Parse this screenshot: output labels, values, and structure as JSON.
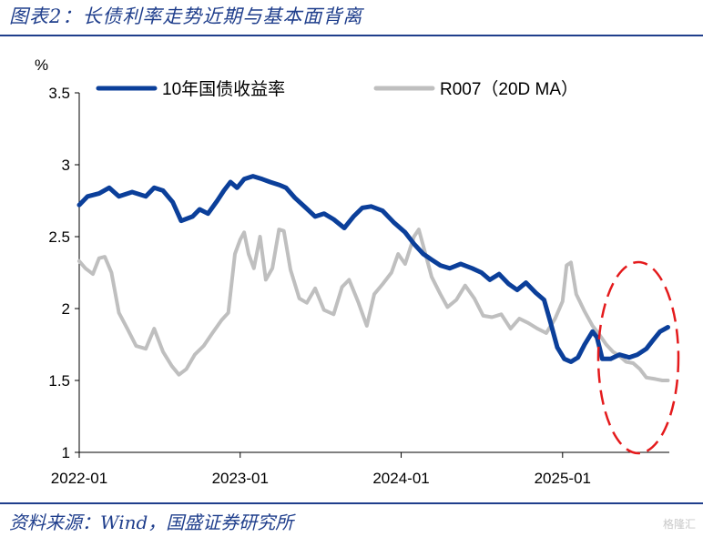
{
  "header": {
    "title": "图表2：长债利率走势近期与基本面背离"
  },
  "footer": {
    "source": "资料来源：Wind，国盛证券研究所",
    "watermark": "格隆汇"
  },
  "colors": {
    "blue_series": "#0b3f9a",
    "gray_series": "#bfbfbf",
    "annotation": "#e41a1c",
    "rule": "#1f3e8c"
  },
  "chart_data": {
    "type": "line",
    "title": "",
    "ylabel": "%",
    "xlabel": "",
    "ylim": [
      1,
      3.5
    ],
    "yticks": [
      "1",
      "1.5",
      "2",
      "2.5",
      "3",
      "3.5"
    ],
    "xticks": [
      "2022-01",
      "2023-01",
      "2024-01",
      "2025-01"
    ],
    "xlim": [
      "2022-01-01",
      "2025-08-31"
    ],
    "legend_position": "top",
    "annotation": "red dashed ellipse around recent divergence (2025-03 to 2025-08)",
    "series": [
      {
        "name": "10年国债收益率",
        "color": "#0b3f9a",
        "points": [
          [
            "2022-01-01",
            2.72
          ],
          [
            "2022-01-20",
            2.78
          ],
          [
            "2022-02-15",
            2.8
          ],
          [
            "2022-03-10",
            2.84
          ],
          [
            "2022-04-01",
            2.78
          ],
          [
            "2022-05-01",
            2.81
          ],
          [
            "2022-06-01",
            2.78
          ],
          [
            "2022-06-20",
            2.84
          ],
          [
            "2022-07-10",
            2.82
          ],
          [
            "2022-08-01",
            2.74
          ],
          [
            "2022-08-20",
            2.61
          ],
          [
            "2022-09-15",
            2.64
          ],
          [
            "2022-10-01",
            2.69
          ],
          [
            "2022-10-20",
            2.66
          ],
          [
            "2022-11-10",
            2.75
          ],
          [
            "2022-11-25",
            2.82
          ],
          [
            "2022-12-10",
            2.88
          ],
          [
            "2022-12-25",
            2.84
          ],
          [
            "2023-01-10",
            2.9
          ],
          [
            "2023-01-30",
            2.92
          ],
          [
            "2023-02-20",
            2.9
          ],
          [
            "2023-03-10",
            2.88
          ],
          [
            "2023-03-30",
            2.86
          ],
          [
            "2023-04-15",
            2.84
          ],
          [
            "2023-05-05",
            2.77
          ],
          [
            "2023-05-30",
            2.7
          ],
          [
            "2023-06-20",
            2.64
          ],
          [
            "2023-07-10",
            2.66
          ],
          [
            "2023-08-01",
            2.62
          ],
          [
            "2023-08-25",
            2.56
          ],
          [
            "2023-09-15",
            2.64
          ],
          [
            "2023-10-05",
            2.7
          ],
          [
            "2023-10-25",
            2.71
          ],
          [
            "2023-11-20",
            2.68
          ],
          [
            "2023-12-15",
            2.6
          ],
          [
            "2024-01-10",
            2.53
          ],
          [
            "2024-01-30",
            2.45
          ],
          [
            "2024-02-20",
            2.38
          ],
          [
            "2024-03-10",
            2.34
          ],
          [
            "2024-03-30",
            2.3
          ],
          [
            "2024-04-20",
            2.28
          ],
          [
            "2024-05-15",
            2.31
          ],
          [
            "2024-06-10",
            2.28
          ],
          [
            "2024-07-01",
            2.25
          ],
          [
            "2024-07-20",
            2.2
          ],
          [
            "2024-08-10",
            2.24
          ],
          [
            "2024-09-01",
            2.17
          ],
          [
            "2024-09-20",
            2.13
          ],
          [
            "2024-10-10",
            2.18
          ],
          [
            "2024-11-01",
            2.11
          ],
          [
            "2024-11-20",
            2.06
          ],
          [
            "2024-12-05",
            1.9
          ],
          [
            "2024-12-20",
            1.73
          ],
          [
            "2025-01-05",
            1.65
          ],
          [
            "2025-01-20",
            1.63
          ],
          [
            "2025-02-05",
            1.66
          ],
          [
            "2025-02-20",
            1.75
          ],
          [
            "2025-03-10",
            1.84
          ],
          [
            "2025-03-20",
            1.8
          ],
          [
            "2025-04-01",
            1.65
          ],
          [
            "2025-04-20",
            1.65
          ],
          [
            "2025-05-10",
            1.68
          ],
          [
            "2025-06-01",
            1.66
          ],
          [
            "2025-06-20",
            1.68
          ],
          [
            "2025-07-10",
            1.72
          ],
          [
            "2025-07-25",
            1.78
          ],
          [
            "2025-08-10",
            1.84
          ],
          [
            "2025-08-28",
            1.87
          ]
        ]
      },
      {
        "name": "R007（20D MA）",
        "color": "#bfbfbf",
        "points": [
          [
            "2022-01-01",
            2.33
          ],
          [
            "2022-01-15",
            2.28
          ],
          [
            "2022-02-01",
            2.24
          ],
          [
            "2022-02-15",
            2.35
          ],
          [
            "2022-02-28",
            2.36
          ],
          [
            "2022-03-15",
            2.25
          ],
          [
            "2022-04-01",
            1.97
          ],
          [
            "2022-04-20",
            1.86
          ],
          [
            "2022-05-10",
            1.74
          ],
          [
            "2022-06-01",
            1.72
          ],
          [
            "2022-06-20",
            1.86
          ],
          [
            "2022-07-10",
            1.7
          ],
          [
            "2022-07-30",
            1.6
          ],
          [
            "2022-08-15",
            1.54
          ],
          [
            "2022-09-01",
            1.58
          ],
          [
            "2022-09-20",
            1.68
          ],
          [
            "2022-10-10",
            1.74
          ],
          [
            "2022-10-30",
            1.83
          ],
          [
            "2022-11-20",
            1.92
          ],
          [
            "2022-12-05",
            1.97
          ],
          [
            "2022-12-20",
            2.38
          ],
          [
            "2023-01-01",
            2.48
          ],
          [
            "2023-01-10",
            2.53
          ],
          [
            "2023-01-20",
            2.38
          ],
          [
            "2023-02-01",
            2.28
          ],
          [
            "2023-02-15",
            2.5
          ],
          [
            "2023-02-28",
            2.2
          ],
          [
            "2023-03-15",
            2.28
          ],
          [
            "2023-03-30",
            2.55
          ],
          [
            "2023-04-10",
            2.54
          ],
          [
            "2023-04-25",
            2.27
          ],
          [
            "2023-05-15",
            2.07
          ],
          [
            "2023-06-01",
            2.04
          ],
          [
            "2023-06-20",
            2.14
          ],
          [
            "2023-07-10",
            1.99
          ],
          [
            "2023-08-01",
            1.96
          ],
          [
            "2023-08-20",
            2.15
          ],
          [
            "2023-09-05",
            2.2
          ],
          [
            "2023-09-25",
            2.05
          ],
          [
            "2023-10-15",
            1.88
          ],
          [
            "2023-11-01",
            2.1
          ],
          [
            "2023-11-20",
            2.17
          ],
          [
            "2023-12-10",
            2.25
          ],
          [
            "2023-12-25",
            2.38
          ],
          [
            "2024-01-10",
            2.31
          ],
          [
            "2024-01-30",
            2.5
          ],
          [
            "2024-02-10",
            2.55
          ],
          [
            "2024-02-25",
            2.38
          ],
          [
            "2024-03-10",
            2.22
          ],
          [
            "2024-03-30",
            2.1
          ],
          [
            "2024-04-15",
            2.01
          ],
          [
            "2024-05-05",
            2.06
          ],
          [
            "2024-05-25",
            2.16
          ],
          [
            "2024-06-15",
            2.07
          ],
          [
            "2024-07-05",
            1.95
          ],
          [
            "2024-07-25",
            1.94
          ],
          [
            "2024-08-15",
            1.96
          ],
          [
            "2024-09-05",
            1.86
          ],
          [
            "2024-09-25",
            1.93
          ],
          [
            "2024-10-15",
            1.9
          ],
          [
            "2024-11-05",
            1.86
          ],
          [
            "2024-11-25",
            1.83
          ],
          [
            "2024-12-15",
            1.93
          ],
          [
            "2025-01-01",
            2.05
          ],
          [
            "2025-01-10",
            2.3
          ],
          [
            "2025-01-20",
            2.32
          ],
          [
            "2025-02-01",
            2.1
          ],
          [
            "2025-02-20",
            1.98
          ],
          [
            "2025-03-10",
            1.88
          ],
          [
            "2025-03-25",
            1.82
          ],
          [
            "2025-04-10",
            1.75
          ],
          [
            "2025-04-25",
            1.7
          ],
          [
            "2025-05-10",
            1.67
          ],
          [
            "2025-05-25",
            1.63
          ],
          [
            "2025-06-10",
            1.62
          ],
          [
            "2025-06-25",
            1.58
          ],
          [
            "2025-07-10",
            1.52
          ],
          [
            "2025-07-30",
            1.51
          ],
          [
            "2025-08-15",
            1.5
          ],
          [
            "2025-08-28",
            1.5
          ]
        ]
      }
    ]
  }
}
